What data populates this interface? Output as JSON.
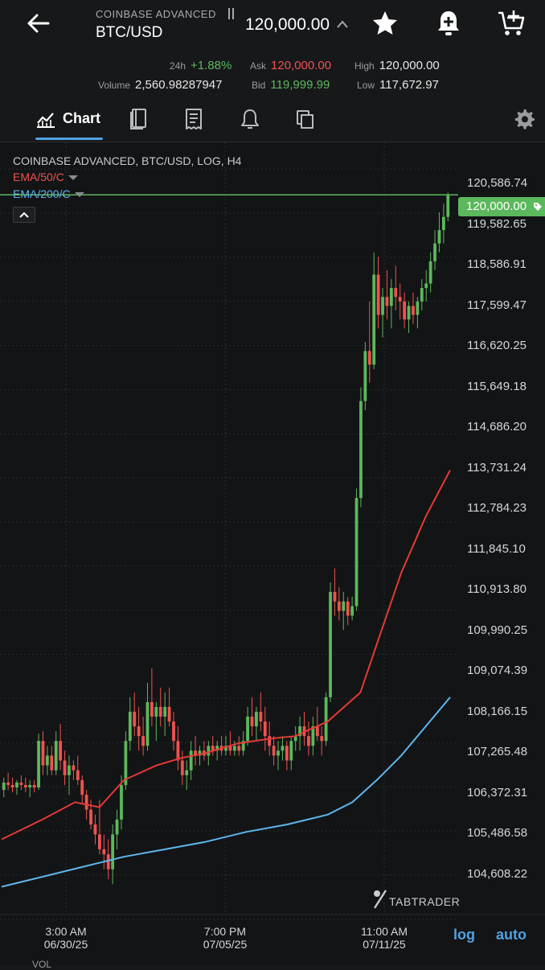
{
  "header": {
    "exchange": "COINBASE ADVANCED",
    "pair": "BTC/USD",
    "last_price": "120,000.00",
    "icons": [
      "back-arrow-icon",
      "star-icon",
      "add-alert-icon",
      "add-to-cart-icon"
    ]
  },
  "stats": {
    "change_label": "24h",
    "change_value": "+1.88%",
    "ask_label": "Ask",
    "ask_value": "120,000.00",
    "high_label": "High",
    "high_value": "120,000.00",
    "volume_label": "Volume",
    "volume_value": "2,560.98287947",
    "bid_label": "Bid",
    "bid_value": "119,999.99",
    "low_label": "Low",
    "low_value": "117,672.97"
  },
  "tabs": [
    {
      "label": "Chart",
      "icon": "chart-icon",
      "active": true
    },
    {
      "label": "",
      "icon": "order-book-icon"
    },
    {
      "label": "",
      "icon": "trades-receipt-icon"
    },
    {
      "label": "",
      "icon": "bell-icon"
    },
    {
      "label": "",
      "icon": "copy-icon"
    }
  ],
  "settings_icon": "gear-icon",
  "chart": {
    "title": "COINBASE ADVANCED, BTC/USD, LOG, H4",
    "ema50": "EMA/50/C",
    "ema200": "EMA/200/C",
    "current_price_tag": "120,000.00",
    "log_button": "log",
    "auto_button": "auto",
    "watermark": "TABTRADER",
    "volume_label": "VOL",
    "colors": {
      "up": "#5cb85c",
      "down": "#ef5350",
      "ema50": "#e53935",
      "ema200": "#5fb5ec",
      "accent": "#4fa3e3"
    }
  },
  "chart_data": {
    "type": "candlestick",
    "title": "COINBASE ADVANCED, BTC/USD, LOG, H4",
    "scale": "log",
    "y_ticks": [
      "120,586.74",
      "119,582.65",
      "118,586.91",
      "117,599.47",
      "116,620.25",
      "115,649.18",
      "114,686.20",
      "113,731.24",
      "112,784.23",
      "111,845.10",
      "110,913.80",
      "109,990.25",
      "109,074.39",
      "108,166.15",
      "107,265.48",
      "106,372.31",
      "105,486.58",
      "104,608.22"
    ],
    "x_ticks": [
      {
        "time": "3:00 AM",
        "date": "06/30/25"
      },
      {
        "time": "7:00 PM",
        "date": "07/05/25"
      },
      {
        "time": "11:00 AM",
        "date": "07/11/25"
      }
    ],
    "ylim": [
      104300,
      121200
    ],
    "current_price": 120000.0,
    "series": [
      {
        "name": "EMA/50/C",
        "x": [
          0,
          10,
          18,
          24,
          30,
          38,
          44,
          50,
          58,
          66,
          72,
          80,
          88,
          92,
          98,
          104,
          110
        ],
        "values": [
          106200,
          106600,
          106950,
          106850,
          107400,
          107700,
          107850,
          107950,
          108150,
          108250,
          108300,
          108600,
          109200,
          110200,
          111700,
          112900,
          113900
        ]
      },
      {
        "name": "EMA/200/C",
        "x": [
          0,
          10,
          20,
          30,
          40,
          50,
          60,
          70,
          80,
          86,
          92,
          98,
          104,
          110
        ],
        "values": [
          105250,
          105450,
          105650,
          105850,
          106000,
          106150,
          106350,
          106500,
          106700,
          106950,
          107400,
          107900,
          108500,
          109100
        ]
      }
    ],
    "candles_ohlc": [
      [
        107200,
        107450,
        107050,
        107350
      ],
      [
        107350,
        107550,
        107200,
        107300
      ],
      [
        107300,
        107450,
        107150,
        107250
      ],
      [
        107250,
        107400,
        107100,
        107350
      ],
      [
        107350,
        107500,
        107200,
        107300
      ],
      [
        107300,
        107450,
        107150,
        107250
      ],
      [
        107250,
        107400,
        107050,
        107300
      ],
      [
        107300,
        107400,
        107150,
        107250
      ],
      [
        107250,
        108350,
        107200,
        108200
      ],
      [
        108200,
        108400,
        107500,
        107700
      ],
      [
        107700,
        108100,
        107500,
        107900
      ],
      [
        107900,
        108100,
        107500,
        107600
      ],
      [
        107600,
        108400,
        107500,
        108200
      ],
      [
        108200,
        108550,
        107600,
        107800
      ],
      [
        107800,
        108000,
        107300,
        107500
      ],
      [
        107500,
        107900,
        107100,
        107700
      ],
      [
        107700,
        107800,
        107400,
        107600
      ],
      [
        107600,
        107900,
        107300,
        107400
      ],
      [
        107400,
        107500,
        106900,
        107100
      ],
      [
        107100,
        107200,
        106600,
        106800
      ],
      [
        106800,
        107000,
        106400,
        106500
      ],
      [
        106500,
        106700,
        106100,
        106300
      ],
      [
        106300,
        107000,
        105900,
        106000
      ],
      [
        106000,
        106300,
        105600,
        105900
      ],
      [
        105900,
        106200,
        105400,
        105600
      ],
      [
        105600,
        106500,
        105300,
        106300
      ],
      [
        106300,
        106800,
        106000,
        106600
      ],
      [
        106600,
        107500,
        106400,
        107300
      ],
      [
        107300,
        108400,
        107200,
        108200
      ],
      [
        108200,
        109100,
        108000,
        108800
      ],
      [
        108800,
        109200,
        108300,
        108500
      ],
      [
        108500,
        108900,
        108000,
        108300
      ],
      [
        108300,
        108700,
        107900,
        108100
      ],
      [
        108100,
        109400,
        108000,
        109000
      ],
      [
        109000,
        109700,
        108500,
        108700
      ],
      [
        108700,
        109000,
        108200,
        108900
      ],
      [
        108900,
        109300,
        108500,
        108700
      ],
      [
        108700,
        109200,
        108300,
        108900
      ],
      [
        108900,
        109300,
        108500,
        108600
      ],
      [
        108600,
        108800,
        108000,
        108200
      ],
      [
        108200,
        108500,
        107600,
        107800
      ],
      [
        107800,
        108000,
        107300,
        107500
      ],
      [
        107500,
        107800,
        107200,
        107600
      ],
      [
        107600,
        108200,
        107400,
        108000
      ],
      [
        108000,
        108300,
        107700,
        107900
      ],
      [
        107900,
        108100,
        107700,
        108000
      ],
      [
        108000,
        108200,
        107800,
        107900
      ],
      [
        107900,
        108200,
        107700,
        108100
      ],
      [
        108100,
        108300,
        107900,
        108000
      ],
      [
        108000,
        108200,
        107800,
        108100
      ],
      [
        108100,
        108300,
        107900,
        108000
      ],
      [
        108000,
        108300,
        107900,
        108100
      ],
      [
        108100,
        108400,
        107900,
        108000
      ],
      [
        108000,
        108200,
        107900,
        108100
      ],
      [
        108100,
        108300,
        107900,
        108000
      ],
      [
        108000,
        108400,
        107900,
        108200
      ],
      [
        108200,
        108900,
        108100,
        108700
      ],
      [
        108700,
        109100,
        108300,
        108500
      ],
      [
        108500,
        108900,
        108200,
        108800
      ],
      [
        108800,
        109200,
        108400,
        108600
      ],
      [
        108600,
        108900,
        108000,
        108300
      ],
      [
        108300,
        108600,
        107900,
        108100
      ],
      [
        108100,
        108300,
        107700,
        107900
      ],
      [
        107900,
        108200,
        107600,
        108000
      ],
      [
        108000,
        108300,
        107800,
        108100
      ],
      [
        108100,
        108200,
        107600,
        107800
      ],
      [
        107800,
        108300,
        107600,
        108200
      ],
      [
        108200,
        108500,
        108000,
        108300
      ],
      [
        108300,
        108700,
        108000,
        108500
      ],
      [
        108500,
        108800,
        108100,
        108300
      ],
      [
        108300,
        108600,
        107900,
        108100
      ],
      [
        108100,
        108700,
        107900,
        108500
      ],
      [
        108500,
        108900,
        108200,
        108300
      ],
      [
        108300,
        108500,
        107900,
        108200
      ],
      [
        108200,
        109200,
        108100,
        109100
      ],
      [
        109100,
        111500,
        109000,
        111300
      ],
      [
        111300,
        111800,
        110800,
        111100
      ],
      [
        111100,
        111400,
        110700,
        110900
      ],
      [
        110900,
        111300,
        110500,
        111100
      ],
      [
        111100,
        111200,
        110600,
        110800
      ],
      [
        110800,
        111200,
        110700,
        111000
      ],
      [
        111000,
        113500,
        110900,
        113300
      ],
      [
        113300,
        115700,
        113100,
        115400
      ],
      [
        115400,
        116700,
        115200,
        116500
      ],
      [
        116500,
        117600,
        115800,
        116200
      ],
      [
        116200,
        118700,
        116100,
        118200
      ],
      [
        118200,
        118600,
        117000,
        117300
      ],
      [
        117300,
        117900,
        116800,
        117700
      ],
      [
        117700,
        118300,
        117200,
        117500
      ],
      [
        117500,
        118100,
        117000,
        117900
      ],
      [
        117900,
        118400,
        117400,
        117700
      ],
      [
        117700,
        118000,
        117200,
        117600
      ],
      [
        117600,
        117800,
        117000,
        117200
      ],
      [
        117200,
        117600,
        116900,
        117500
      ],
      [
        117500,
        117800,
        117100,
        117300
      ],
      [
        117300,
        117700,
        117000,
        117600
      ],
      [
        117600,
        118100,
        117400,
        117900
      ],
      [
        117900,
        118300,
        117600,
        118000
      ],
      [
        118000,
        118700,
        117800,
        118500
      ],
      [
        118500,
        119200,
        118300,
        118900
      ],
      [
        118900,
        119600,
        118700,
        119200
      ],
      [
        119200,
        119800,
        118900,
        119500
      ],
      [
        119500,
        120050,
        119400,
        120000
      ]
    ]
  }
}
